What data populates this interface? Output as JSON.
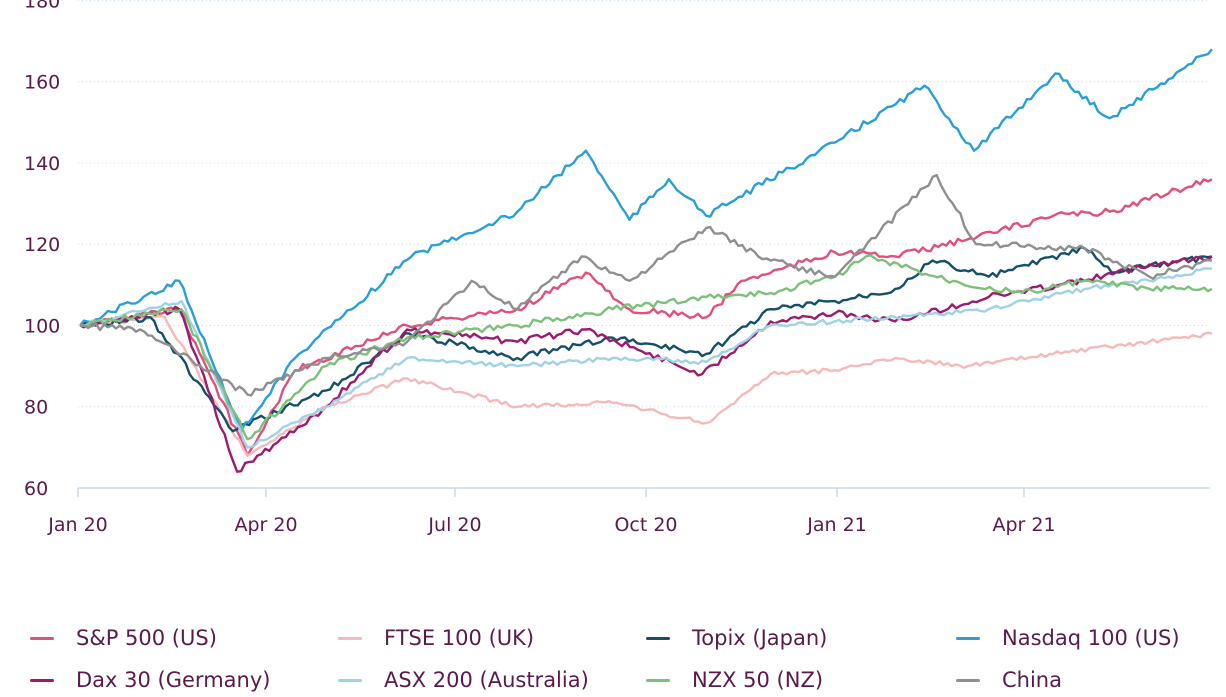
{
  "chart_data": {
    "type": "line",
    "title": "",
    "xlabel": "",
    "ylabel": "",
    "x_ticks": [
      "Jan 20",
      "Apr 20",
      "Jul 20",
      "Oct 20",
      "Jan 21",
      "Apr 21"
    ],
    "y_ticks": [
      60,
      80,
      100,
      120,
      140,
      160,
      180
    ],
    "ylim": [
      60,
      180
    ],
    "grid": "horizontal dotted",
    "legend_position": "bottom",
    "series": [
      {
        "name": "S&P 500 (US)",
        "color": "#e0507a",
        "x": [
          "2020-01-02",
          "2020-02-19",
          "2020-03-23",
          "2020-04-15",
          "2020-06-08",
          "2020-07-31",
          "2020-09-02",
          "2020-09-23",
          "2020-10-30",
          "2020-11-16",
          "2020-12-31",
          "2021-01-29",
          "2021-03-04",
          "2021-04-15",
          "2021-05-12",
          "2021-06-30"
        ],
        "values": [
          100,
          104,
          68,
          89,
          100,
          104,
          113,
          104,
          102,
          111,
          118,
          117,
          121,
          127,
          128,
          136
        ]
      },
      {
        "name": "FTSE 100 (UK)",
        "color": "#f6b9b9",
        "x": [
          "2020-01-02",
          "2020-02-12",
          "2020-03-23",
          "2020-04-30",
          "2020-06-08",
          "2020-07-31",
          "2020-09-15",
          "2020-10-30",
          "2020-11-30",
          "2020-12-31",
          "2021-01-29",
          "2021-03-05",
          "2021-04-15",
          "2021-05-31",
          "2021-06-30"
        ],
        "values": [
          100,
          102,
          68,
          80,
          87,
          80,
          81,
          76,
          88,
          89,
          92,
          90,
          93,
          96,
          98
        ]
      },
      {
        "name": "Topix (Japan)",
        "color": "#14506a",
        "x": [
          "2020-01-02",
          "2020-02-05",
          "2020-03-16",
          "2020-04-30",
          "2020-06-09",
          "2020-07-31",
          "2020-09-15",
          "2020-10-30",
          "2020-11-30",
          "2020-12-31",
          "2021-01-29",
          "2021-02-16",
          "2021-03-15",
          "2021-04-30",
          "2021-05-13",
          "2021-06-30"
        ],
        "values": [
          100,
          102,
          74,
          84,
          98,
          92,
          97,
          93,
          104,
          106,
          109,
          116,
          112,
          119,
          113,
          117
        ]
      },
      {
        "name": "Nasdaq 100 (US)",
        "color": "#2a9fd6",
        "x": [
          "2020-01-02",
          "2020-02-19",
          "2020-03-20",
          "2020-04-15",
          "2020-06-10",
          "2020-07-31",
          "2020-09-02",
          "2020-09-23",
          "2020-10-12",
          "2020-10-30",
          "2020-12-31",
          "2021-02-12",
          "2021-03-08",
          "2021-04-16",
          "2021-05-12",
          "2021-06-30"
        ],
        "values": [
          100,
          111,
          74,
          92,
          117,
          128,
          143,
          126,
          136,
          127,
          145,
          159,
          143,
          162,
          151,
          168
        ]
      },
      {
        "name": "Dax 30 (Germany)",
        "color": "#9b1b6e",
        "x": [
          "2020-01-02",
          "2020-02-19",
          "2020-03-18",
          "2020-04-30",
          "2020-06-08",
          "2020-07-31",
          "2020-09-02",
          "2020-10-28",
          "2020-11-30",
          "2020-12-31",
          "2021-01-29",
          "2021-03-15",
          "2021-04-30",
          "2021-05-31",
          "2021-06-30"
        ],
        "values": [
          100,
          104,
          64,
          80,
          99,
          96,
          99,
          88,
          101,
          103,
          101,
          107,
          111,
          115,
          117
        ]
      },
      {
        "name": "ASX 200 (Australia)",
        "color": "#9fd2e6",
        "x": [
          "2020-01-02",
          "2020-02-20",
          "2020-03-23",
          "2020-04-30",
          "2020-06-08",
          "2020-07-31",
          "2020-09-15",
          "2020-10-30",
          "2020-11-30",
          "2020-12-31",
          "2021-01-29",
          "2021-03-15",
          "2021-04-30",
          "2021-05-31",
          "2021-06-30"
        ],
        "values": [
          100,
          106,
          70,
          80,
          92,
          90,
          92,
          91,
          100,
          101,
          102,
          104,
          109,
          111,
          114
        ]
      },
      {
        "name": "NZX 50 (NZ)",
        "color": "#7cc07a",
        "x": [
          "2020-01-02",
          "2020-02-20",
          "2020-03-23",
          "2020-04-30",
          "2020-06-08",
          "2020-07-31",
          "2020-09-15",
          "2020-10-30",
          "2020-11-30",
          "2020-12-31",
          "2021-01-15",
          "2021-02-26",
          "2021-03-31",
          "2021-04-30",
          "2021-05-31",
          "2021-06-30"
        ],
        "values": [
          100,
          104,
          72,
          90,
          97,
          100,
          104,
          107,
          108,
          112,
          117,
          111,
          108,
          111,
          109,
          109
        ]
      },
      {
        "name": "China",
        "color": "#8f8f8f",
        "x": [
          "2020-01-02",
          "2020-01-31",
          "2020-03-23",
          "2020-04-30",
          "2020-06-08",
          "2020-07-09",
          "2020-07-31",
          "2020-08-31",
          "2020-09-23",
          "2020-10-30",
          "2020-11-30",
          "2020-12-31",
          "2021-02-18",
          "2021-03-09",
          "2021-04-30",
          "2021-05-31",
          "2021-06-30"
        ],
        "values": [
          100,
          99,
          83,
          92,
          96,
          111,
          104,
          117,
          111,
          124,
          116,
          112,
          137,
          120,
          119,
          112,
          116
        ]
      }
    ]
  }
}
